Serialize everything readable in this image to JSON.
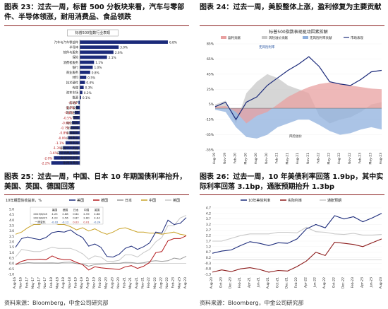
{
  "colors": {
    "navy": "#1b2a7a",
    "red": "#b3191c",
    "maroon": "#8b1a1a",
    "blue": "#1f4e9e",
    "gray": "#9a9a9a",
    "light_gray": "#c8c8c8",
    "gold": "#c9a227",
    "light_blue": "#8fb0dd",
    "pink": "#e8a0a0"
  },
  "panels": {
    "p23": {
      "caption": "图表 23：过去一周，标普 500 分板块来看，汽车与零部件、半导体领涨，耐用消费品、食品领跌",
      "source": ""
    },
    "p24": {
      "caption": "图表 24：过去一周，美股整体上涨，盈利修复为主要贡献",
      "source": ""
    },
    "p25": {
      "caption": "图表 25：过去一周，中国、日本 10 年期国债利率抬升，美国、英国、德国回落",
      "source": "资料来源：Bloomberg，中金公司研究部"
    },
    "p26": {
      "caption": "图表 26：过去一周，10 年美债利率回落 1.9bp，其中实际利率回落 3.1bp，通胀预期抬升 1.3bp",
      "source": "资料来源：Bloomberg，中金公司研究部"
    }
  },
  "chart_data": [
    {
      "type": "bar",
      "title": "标普500指数行业表现",
      "orientation": "horizontal",
      "categories": [
        "汽车与汽车零部件",
        "半导体",
        "软件与服务",
        "保险",
        "消费者服务",
        "银行",
        "商业服务",
        "材料",
        "技术硬件",
        "传媒",
        "资本市场",
        "能源",
        "房地产",
        "医疗设备",
        "制药生物",
        "零售",
        "电信服务",
        "交通运输",
        "金融服务",
        "公用事业",
        "资本品",
        "家庭个人用品",
        "日常消费品零售",
        "食品饮料烟草",
        "耐用消费品"
      ],
      "values": [
        6.8,
        3.0,
        2.6,
        2.1,
        1.1,
        1.0,
        0.8,
        0.5,
        0.4,
        0.3,
        0.2,
        0.1,
        -0.1,
        -0.3,
        -0.4,
        -0.5,
        -0.6,
        -0.7,
        -0.8,
        -0.9,
        -1.1,
        -1.3,
        -1.6,
        -2.0,
        -2.2
      ],
      "value_labels": [
        "6.8%",
        "3.0%",
        "2.6%",
        "2.1%",
        "1.1%",
        "1.0%",
        "0.8%",
        "0.5%",
        "0.4%",
        "0.3%",
        "0.2%",
        "0.1%",
        "-0.1%",
        "-0.3%",
        "-0.4%",
        "-0.5%",
        "-0.6%",
        "-0.7%",
        "-0.8%",
        "-0.9%",
        "-1.1%",
        "-1.3%",
        "-1.6%",
        "-2.0%",
        "-2.2%"
      ],
      "xlim": [
        -3,
        8
      ]
    },
    {
      "type": "area",
      "title": "标普500指数表现驱动因素拆解",
      "legend": [
        "盈利贡献",
        "风险溢价贡献",
        "无风险利率贡献",
        "市场表现"
      ],
      "annotations": [
        "无风险利率",
        "风险溢价"
      ],
      "x_ticks": [
        "Aug-19",
        "Nov-19",
        "Feb-20",
        "May-20",
        "Aug-20",
        "Nov-20",
        "Feb-21",
        "May-21",
        "Aug-21",
        "Nov-21",
        "Feb-22",
        "May-22",
        "Aug-22",
        "Nov-22",
        "Feb-23",
        "May-23",
        "Aug-23"
      ],
      "y_ticks": [
        "85%",
        "65%",
        "45%",
        "25%",
        "5%",
        "-15%",
        "-35%",
        "-55%"
      ],
      "ylim": [
        -55,
        85
      ],
      "series": [
        {
          "name": "盈利贡献",
          "values": [
            2,
            3,
            -5,
            -20,
            -10,
            -5,
            5,
            15,
            22,
            28,
            32,
            34,
            33,
            30,
            28,
            26,
            25
          ]
        },
        {
          "name": "风险溢价贡献",
          "values": [
            5,
            10,
            -20,
            20,
            35,
            45,
            40,
            30,
            25,
            20,
            -10,
            -20,
            -15,
            -12,
            -5,
            5,
            8
          ]
        },
        {
          "name": "无风险利率贡献",
          "values": [
            -2,
            -5,
            -25,
            -38,
            -40,
            -35,
            -25,
            -20,
            -15,
            -15,
            -22,
            -30,
            -35,
            -33,
            -28,
            -25,
            -28
          ]
        },
        {
          "name": "市场表现",
          "values": [
            2,
            8,
            -15,
            8,
            15,
            30,
            40,
            50,
            58,
            68,
            55,
            35,
            32,
            30,
            38,
            48,
            50
          ]
        }
      ]
    },
    {
      "type": "line",
      "title": "10年期国债收益率，%",
      "legend": [
        "美国",
        "德国",
        "日本",
        "中国",
        "英国"
      ],
      "table": {
        "headers": [
          "",
          "美国",
          "德国",
          "日本",
          "中国",
          "英国"
        ],
        "rows": [
          [
            "2023/8/18",
            "4.25",
            "2.68",
            "0.64",
            "2.59",
            "4.68"
          ],
          [
            "2023/8/25",
            "4.23",
            "2.56",
            "0.67",
            "2.60",
            "4.44"
          ],
          [
            "一周变化",
            "-0.02",
            "-0.12",
            "0.03",
            "0.01",
            "-0.24"
          ]
        ]
      },
      "x_ticks": [
        "Aug-16",
        "Nov-16",
        "Feb-17",
        "May-17",
        "Aug-17",
        "Nov-17",
        "Feb-18",
        "May-18",
        "Aug-18",
        "Nov-18",
        "Feb-19",
        "May-19",
        "Aug-19",
        "Nov-19",
        "Feb-20",
        "May-20",
        "Aug-20",
        "Nov-20",
        "Feb-21",
        "May-21",
        "Aug-21",
        "Nov-21",
        "Feb-22",
        "May-22",
        "Aug-22",
        "Nov-22",
        "Feb-23",
        "May-23",
        "Aug-23"
      ],
      "y_ticks": [
        "5.0",
        "4.5",
        "4.0",
        "3.5",
        "3.0",
        "2.5",
        "2.0",
        "1.5",
        "1.0",
        "0.5",
        "0.0",
        "-0.5",
        "-1.0"
      ],
      "ylim": [
        -1,
        5
      ],
      "series": [
        {
          "name": "美国",
          "values": [
            1.5,
            2.3,
            2.45,
            2.3,
            2.2,
            2.4,
            2.85,
            2.95,
            2.9,
            3.1,
            2.7,
            2.4,
            1.6,
            1.8,
            1.5,
            0.65,
            0.6,
            0.85,
            1.4,
            1.6,
            1.3,
            1.55,
            1.9,
            2.9,
            2.8,
            4.0,
            3.6,
            3.7,
            4.23
          ]
        },
        {
          "name": "德国",
          "values": [
            -0.1,
            0.2,
            0.35,
            0.35,
            0.4,
            0.35,
            0.7,
            0.45,
            0.35,
            0.35,
            0.1,
            -0.1,
            -0.6,
            -0.3,
            -0.4,
            -0.45,
            -0.5,
            -0.55,
            -0.3,
            -0.2,
            -0.45,
            -0.25,
            0.1,
            1.0,
            1.1,
            2.1,
            2.3,
            2.3,
            2.56
          ]
        },
        {
          "name": "日本",
          "values": [
            -0.1,
            0.0,
            0.08,
            0.05,
            0.05,
            0.05,
            0.06,
            0.04,
            0.1,
            0.12,
            0.0,
            -0.05,
            -0.25,
            -0.1,
            -0.05,
            0.0,
            0.03,
            0.02,
            0.1,
            0.08,
            0.02,
            0.07,
            0.2,
            0.25,
            0.2,
            0.25,
            0.5,
            0.4,
            0.67
          ]
        },
        {
          "name": "中国",
          "values": [
            2.7,
            2.9,
            3.3,
            3.6,
            3.6,
            3.9,
            3.8,
            3.6,
            3.6,
            3.4,
            3.1,
            3.3,
            3.0,
            3.2,
            2.9,
            2.7,
            2.9,
            3.2,
            3.3,
            3.1,
            2.9,
            2.9,
            2.8,
            2.8,
            2.7,
            2.8,
            2.9,
            2.7,
            2.6
          ]
        },
        {
          "name": "英国",
          "values": [
            0.6,
            1.3,
            1.2,
            1.1,
            1.1,
            1.3,
            1.5,
            1.4,
            1.4,
            1.4,
            1.2,
            0.9,
            0.4,
            0.7,
            0.6,
            0.2,
            0.2,
            0.3,
            0.8,
            0.8,
            0.6,
            1.0,
            1.3,
            2.0,
            2.4,
            3.5,
            3.5,
            4.2,
            4.44
          ]
        }
      ]
    },
    {
      "type": "line",
      "legend": [
        "10年美债利率",
        "实际利率",
        "通胀预期"
      ],
      "x_ticks": [
        "Aug-20",
        "Oct-20",
        "Dec-20",
        "Feb-21",
        "Apr-21",
        "Jun-21",
        "Aug-21",
        "Oct-21",
        "Dec-21",
        "Feb-22",
        "Apr-22",
        "Jun-22",
        "Aug-22",
        "Oct-22",
        "Dec-22",
        "Feb-23",
        "Apr-23",
        "Jun-23",
        "Aug-23"
      ],
      "y_ticks": [
        "4.7",
        "4.2",
        "3.7",
        "3.2",
        "2.7",
        "2.2",
        "1.7",
        "1.2",
        "0.7",
        "0.2",
        "-0.3",
        "-0.8",
        "-1.3"
      ],
      "ylim": [
        -1.3,
        4.7
      ],
      "series": [
        {
          "name": "10年美债利率",
          "values": [
            0.6,
            0.8,
            0.9,
            1.3,
            1.65,
            1.5,
            1.3,
            1.55,
            1.5,
            1.9,
            2.8,
            3.2,
            2.9,
            4.0,
            3.7,
            3.9,
            3.45,
            3.8,
            4.2
          ]
        },
        {
          "name": "实际利率",
          "values": [
            -1.1,
            -0.9,
            -1.05,
            -0.8,
            -0.7,
            -0.85,
            -1.1,
            -0.95,
            -1.0,
            -0.6,
            -0.1,
            0.7,
            0.4,
            1.6,
            1.5,
            1.4,
            1.2,
            1.55,
            1.9
          ]
        },
        {
          "name": "通胀预期",
          "values": [
            1.7,
            1.7,
            1.95,
            2.2,
            2.35,
            2.35,
            2.35,
            2.5,
            2.5,
            2.45,
            2.95,
            2.55,
            2.5,
            2.35,
            2.3,
            2.4,
            2.25,
            2.25,
            2.3
          ]
        }
      ]
    }
  ]
}
